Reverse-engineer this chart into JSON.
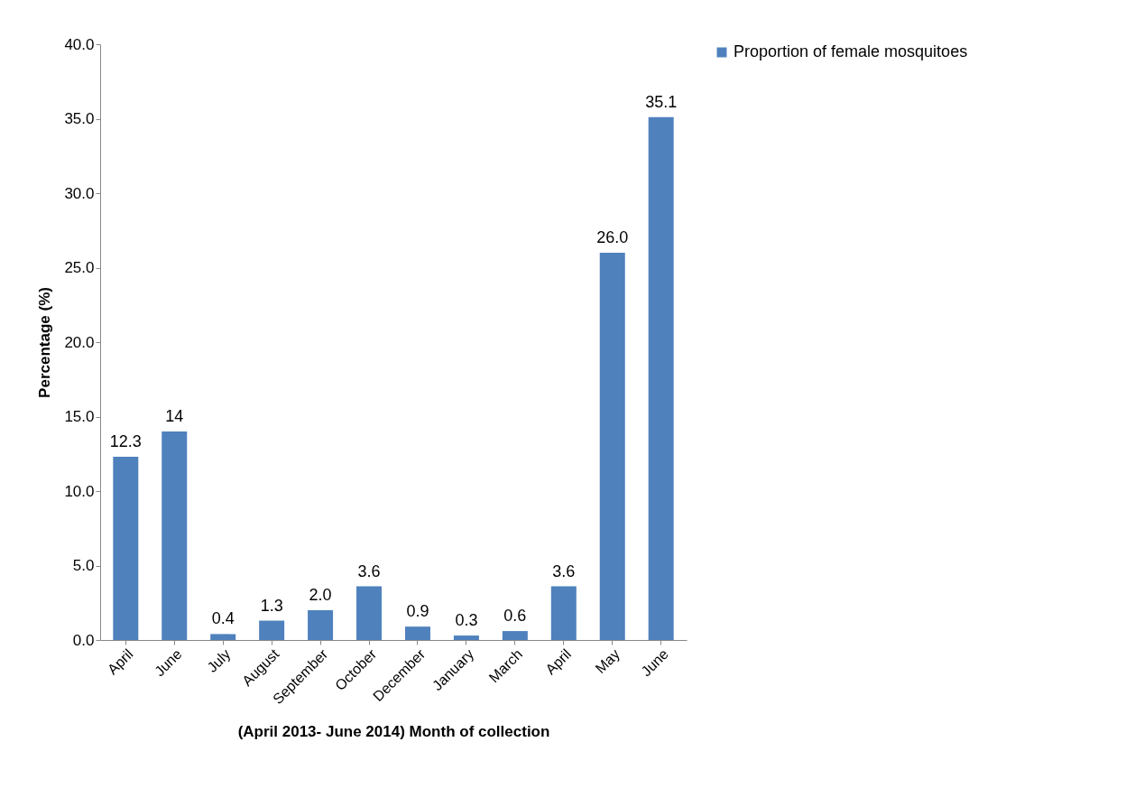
{
  "chart_data": {
    "type": "bar",
    "xlabel": "(April 2013- June 2014) Month of collection",
    "ylabel": "Percentage (%)",
    "categories": [
      "April",
      "June",
      "July",
      "August",
      "September",
      "October",
      "December",
      "January",
      "March",
      "April",
      "May",
      "June"
    ],
    "series": [
      {
        "name": "Proportion of female mosquitoes",
        "color": "#4f81bd",
        "values": [
          12.3,
          14,
          0.4,
          1.3,
          2.0,
          3.6,
          0.9,
          0.3,
          0.6,
          3.6,
          26.0,
          35.1
        ],
        "value_labels": [
          "12.3",
          "14",
          "0.4",
          "1.3",
          "2.0",
          "3.6",
          "0.9",
          "0.3",
          "0.6",
          "3.6",
          "26.0",
          "35.1"
        ]
      }
    ],
    "ylim": [
      0,
      40
    ],
    "yticks": [
      {
        "value": 0,
        "label": "0.0"
      },
      {
        "value": 5,
        "label": "5.0"
      },
      {
        "value": 10,
        "label": "10.0"
      },
      {
        "value": 15,
        "label": "15.0"
      },
      {
        "value": 20,
        "label": "20.0"
      },
      {
        "value": 25,
        "label": "25.0"
      },
      {
        "value": 30,
        "label": "30.0"
      },
      {
        "value": 35,
        "label": "35.0"
      },
      {
        "value": 40,
        "label": "40.0"
      }
    ],
    "grid": false,
    "legend": "right"
  }
}
